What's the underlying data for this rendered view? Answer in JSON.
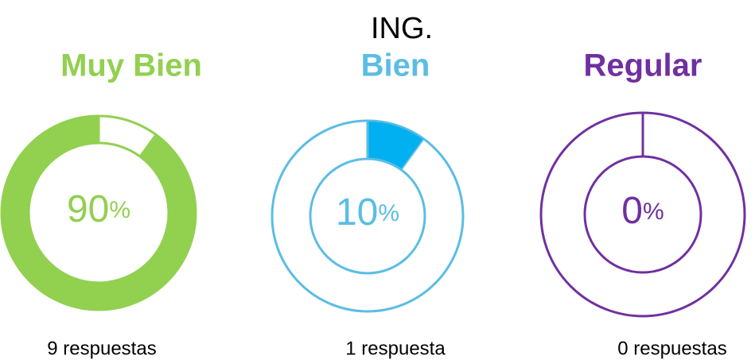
{
  "title": "ING.",
  "chart_data": [
    {
      "type": "donut",
      "title": "Muy Bien",
      "values": [
        90
      ],
      "unit": "%",
      "caption": "9 respuestas",
      "color": "#92d050",
      "outline_color": "#92d050",
      "direction": "counterclockwise"
    },
    {
      "type": "donut",
      "title": "Bien",
      "values": [
        10
      ],
      "unit": "%",
      "caption": "1 respuesta",
      "color": "#00b0f0",
      "outline_color": "#5bbde4",
      "direction": "clockwise"
    },
    {
      "type": "donut",
      "title": "Regular",
      "values": [
        0
      ],
      "unit": "%",
      "caption": "0 respuestas",
      "color": "#7030a0",
      "outline_color": "#7030a0",
      "direction": "clockwise"
    }
  ]
}
